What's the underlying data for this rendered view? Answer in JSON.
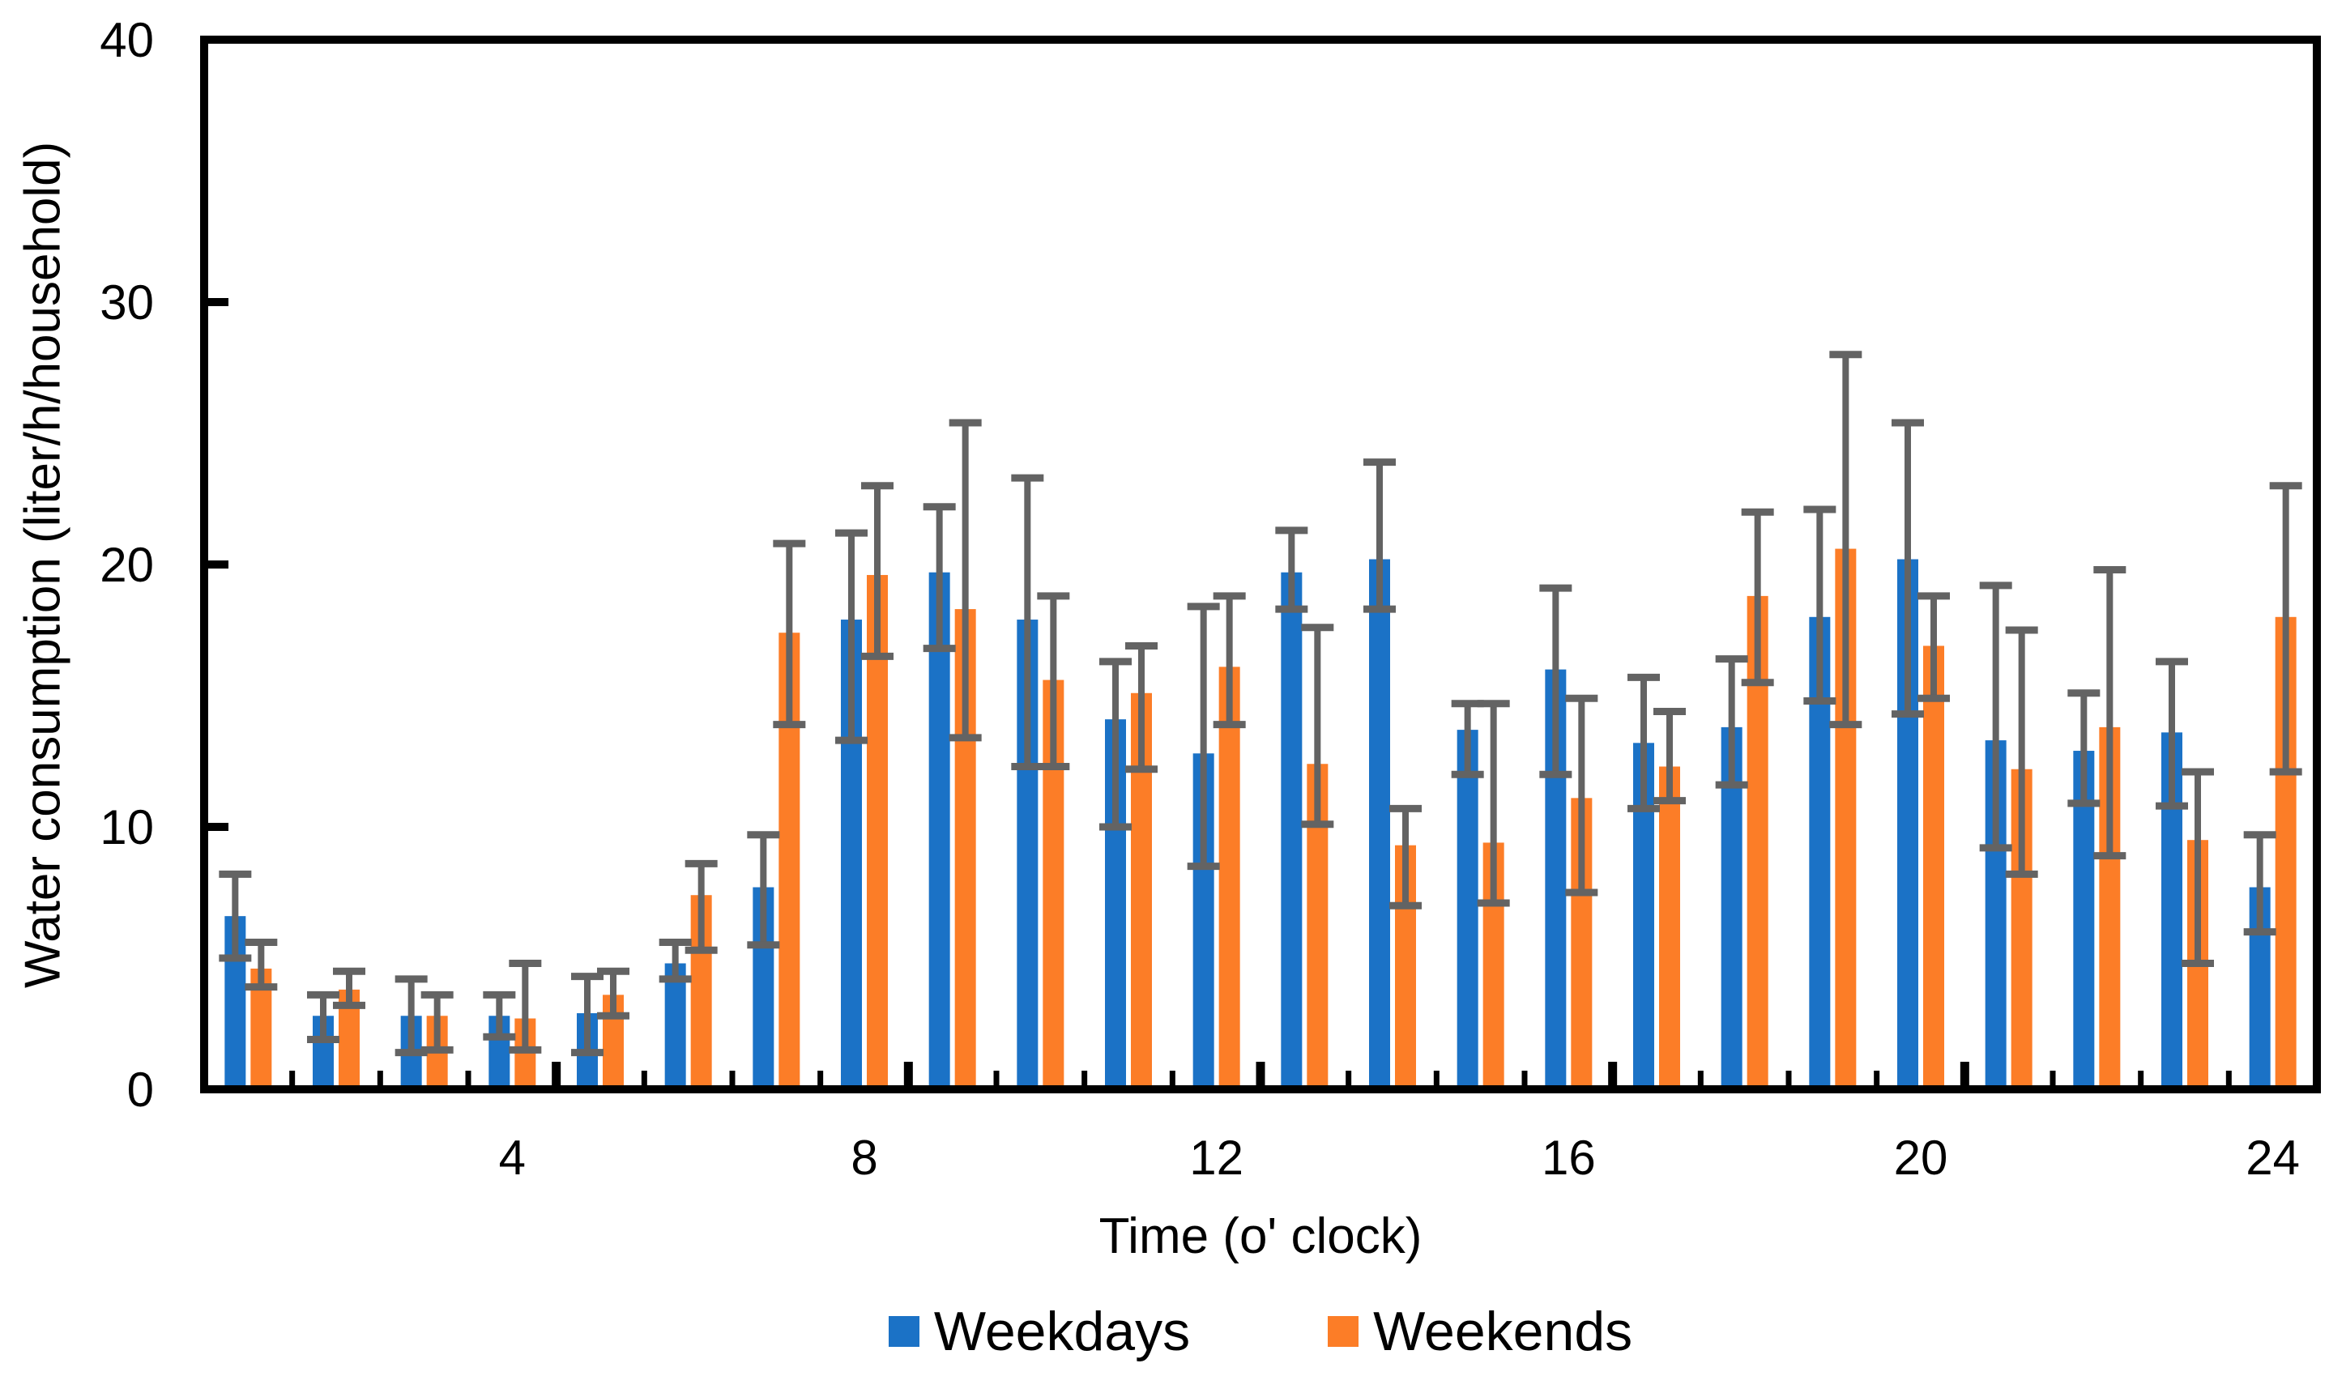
{
  "y_axis": {
    "label": "Water consumption (liter/h/household)",
    "tick_labels": [
      "0",
      "10",
      "20",
      "30",
      "40"
    ]
  },
  "x_axis": {
    "label": "Time (o' clock)",
    "tick_labels": [
      "4",
      "8",
      "12",
      "16",
      "20",
      "24"
    ]
  },
  "legend": {
    "items": [
      {
        "label": "Weekdays",
        "color": "#1B72C6"
      },
      {
        "label": "Weekends",
        "color": "#FC7D27"
      }
    ]
  },
  "chart_data": {
    "type": "bar",
    "title": "",
    "xlabel": "Time (o' clock)",
    "ylabel": "Water consumption (liter/h/household)",
    "ylim": [
      0,
      40
    ],
    "y_ticks": [
      0,
      10,
      20,
      30,
      40
    ],
    "x_ticks_labeled": [
      4,
      8,
      12,
      16,
      20,
      24
    ],
    "grid": false,
    "legend_position": "bottom",
    "error_bars": true,
    "error_color": "#636363",
    "axis_color": "#000000",
    "categories": [
      1,
      2,
      3,
      4,
      5,
      6,
      7,
      8,
      9,
      10,
      11,
      12,
      13,
      14,
      15,
      16,
      17,
      18,
      19,
      20,
      21,
      22,
      23,
      24
    ],
    "series": [
      {
        "name": "Weekdays",
        "color": "#1B72C6",
        "values": [
          6.6,
          2.8,
          2.8,
          2.8,
          2.9,
          4.8,
          7.7,
          17.9,
          19.7,
          17.9,
          14.1,
          12.8,
          19.7,
          20.2,
          13.7,
          16.0,
          13.2,
          13.8,
          18.0,
          20.2,
          13.3,
          12.9,
          13.6,
          7.7
        ],
        "err_low": [
          5.0,
          1.9,
          1.4,
          2.0,
          1.4,
          4.2,
          5.5,
          13.3,
          16.8,
          12.3,
          10.0,
          8.5,
          18.3,
          18.3,
          12.0,
          12.0,
          10.7,
          11.6,
          14.8,
          14.3,
          9.2,
          10.9,
          10.8,
          6.0
        ],
        "err_high": [
          8.2,
          3.6,
          4.2,
          3.6,
          4.3,
          5.6,
          9.7,
          21.2,
          22.2,
          23.3,
          16.3,
          18.4,
          21.3,
          23.9,
          14.7,
          19.1,
          15.7,
          16.4,
          22.1,
          25.4,
          19.2,
          15.1,
          16.3,
          9.7
        ]
      },
      {
        "name": "Weekends",
        "color": "#FC7D27",
        "values": [
          4.6,
          3.8,
          2.8,
          2.7,
          3.6,
          7.4,
          17.4,
          19.6,
          18.3,
          15.6,
          15.1,
          16.1,
          12.4,
          9.3,
          9.4,
          11.1,
          12.3,
          18.8,
          20.6,
          16.9,
          12.2,
          13.8,
          9.5,
          18.0
        ],
        "err_low": [
          3.9,
          3.2,
          1.5,
          1.5,
          2.8,
          5.3,
          13.9,
          16.5,
          13.4,
          12.3,
          12.2,
          13.9,
          10.1,
          7.0,
          7.1,
          7.5,
          11.0,
          15.5,
          13.9,
          14.9,
          8.2,
          8.9,
          4.8,
          12.1
        ],
        "err_high": [
          5.6,
          4.5,
          3.6,
          4.8,
          4.5,
          8.6,
          20.8,
          23.0,
          25.4,
          18.8,
          16.9,
          18.8,
          17.6,
          10.7,
          14.7,
          14.9,
          14.4,
          22.0,
          28.0,
          18.8,
          17.5,
          19.8,
          12.1,
          23.0
        ]
      }
    ]
  }
}
